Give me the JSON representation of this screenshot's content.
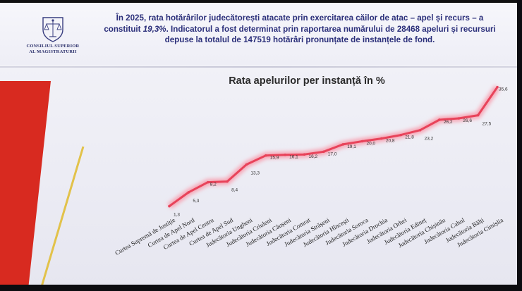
{
  "header": {
    "logo_text_line1": "CONSILIUL SUPERIOR",
    "logo_text_line2": "AL MAGISTRATURII",
    "intro_line1": "În 2025, rata hotărârilor judecătorești atacate prin exercitarea căilor de atac – apel și recurs – a",
    "intro_line2_a": "constituit ",
    "intro_line2_em": "19,3%",
    "intro_line2_b": ". Indicatorul a fost determinat prin raportarea numărului de 28468 apeluri și recursuri",
    "intro_line3": "depuse la totalul de 147519 hotărâri pronunțate de instanțele de fond."
  },
  "colors": {
    "line": "#e8435a",
    "glow": "#f7a3b2",
    "accent_red": "#d82a20",
    "accent_yellow": "#e2c24a",
    "text_blue": "#2b2f7a"
  },
  "chart_data": {
    "type": "line",
    "title": "Rata apelurilor per instanță în %",
    "categories": [
      "Curtea Supremă de Justiție",
      "Curtea de Apel Nord",
      "Curtea de Apel Centru",
      "Curtea de Apel Sud",
      "Judecătoria Ungheni",
      "Judecătoria Criuleni",
      "Judecătoria Căușeni",
      "Judecătoria Comrat",
      "Judecătoria Strășeni",
      "Judecătoria Hîncești",
      "Judecătoria Soroca",
      "Judecătoria Drochia",
      "Judecătoria Orhei",
      "Judecătoria Edineț",
      "Judecătoria Chișinău",
      "Judecătoria Cahul",
      "Judecătoria Bălți",
      "Judecătoria Cimișlia"
    ],
    "values": [
      1.3,
      5.3,
      8.2,
      8.4,
      13.3,
      15.9,
      16.1,
      16.2,
      17.0,
      19.1,
      20.0,
      20.8,
      21.8,
      23.2,
      26.2,
      26.6,
      27.5,
      35.6
    ],
    "value_labels": [
      "1,3",
      "5,3",
      "8,2",
      "8,4",
      "13,3",
      "15,9",
      "16,1",
      "16,2",
      "17,0",
      "19,1",
      "20,0",
      "20,8",
      "21,8",
      "23,2",
      "26,2",
      "26,6",
      "27,5",
      "35,6"
    ],
    "xlabel": "",
    "ylabel": "",
    "ylim": [
      0,
      40
    ],
    "grid": false,
    "legend": "none"
  }
}
